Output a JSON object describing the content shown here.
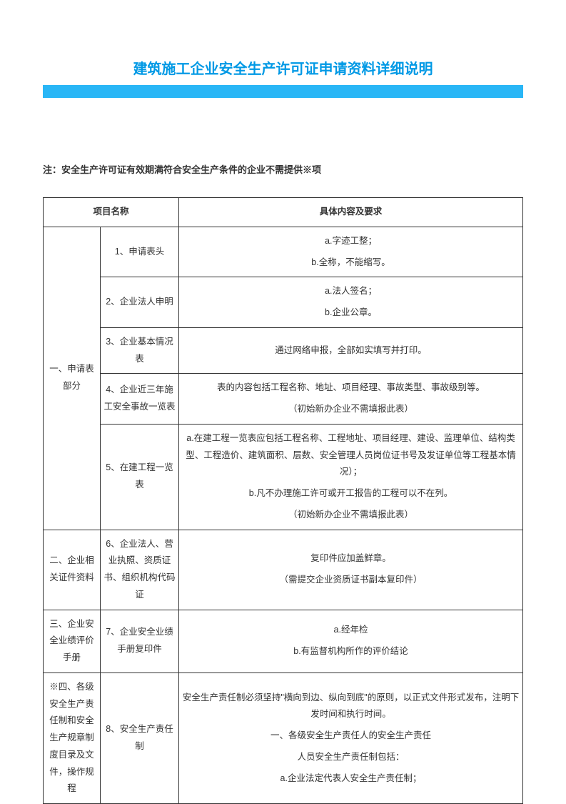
{
  "title": "建筑施工企业安全生产许可证申请资料详细说明",
  "note": "注：安全生产许可证有效期满符合安全生产条件的企业不需提供※项",
  "headers": {
    "col12": "项目名称",
    "col3": "具体内容及要求"
  },
  "sections": {
    "s1": {
      "label": "一、申请表部分",
      "items": {
        "i1": {
          "label": "1、申请表头",
          "content_a": "a.字迹工整；",
          "content_b": "b.全称，不能缩写。"
        },
        "i2": {
          "label": "2、企业法人申明",
          "content_a": "a.法人签名；",
          "content_b": "b.企业公章。"
        },
        "i3": {
          "label": "3、企业基本情况表",
          "content": "通过网络申报，全部如实填写并打印。"
        },
        "i4": {
          "label": "4、企业近三年施工安全事故一览表",
          "content_a": "表的内容包括工程名称、地址、项目经理、事故类型、事故级别等。",
          "content_b": "（初始新办企业不需填报此表）"
        },
        "i5": {
          "label": "5、在建工程一览表",
          "content_a": "a.在建工程一览表应包括工程名称、工程地址、项目经理、建设、监理单位、结构类型、工程造价、建筑面积、层数、安全管理人员岗位证书号及发证单位等工程基本情况）；",
          "content_b": "b.凡不办理施工许可或开工报告的工程可以不在列。",
          "content_c": "（初始新办企业不需填报此表）"
        }
      }
    },
    "s2": {
      "label": "二、企业相关证件资料",
      "items": {
        "i6": {
          "label": "6、企业法人、营业执照、资质证书、组织机构代码证",
          "content_a": "复印件应加盖鲜章。",
          "content_b": "（需提交企业资质证书副本复印件）"
        }
      }
    },
    "s3": {
      "label": "三、企业安全业绩评价手册",
      "items": {
        "i7": {
          "label": "7、企业安全业绩手册复印件",
          "content_a": "a.经年检",
          "content_b": "b.有监督机构所作的评价结论"
        }
      }
    },
    "s4": {
      "label": "※四、各级安全生产责任制和安全生产规章制度目录及文件，操作规程",
      "items": {
        "i8": {
          "label": "8、安全生产责任制",
          "content_a": "安全生产责任制必须坚持\"横向到边、纵向到底\"的原则，以正式文件形式发布，注明下发时间和执行时间。",
          "content_b": "一、各级安全生产责任人的安全生产责任",
          "content_c": "人员安全生产责任制包括：",
          "content_d": "a.企业法定代表人安全生产责任制；"
        }
      }
    }
  },
  "styling": {
    "title_color": "#0099e5",
    "bar_color": "#29b6f6",
    "border_color": "#333333",
    "text_color": "#333333",
    "background_color": "#ffffff",
    "title_fontsize": 20,
    "body_fontsize": 13,
    "cell_fontsize": 12.5
  }
}
